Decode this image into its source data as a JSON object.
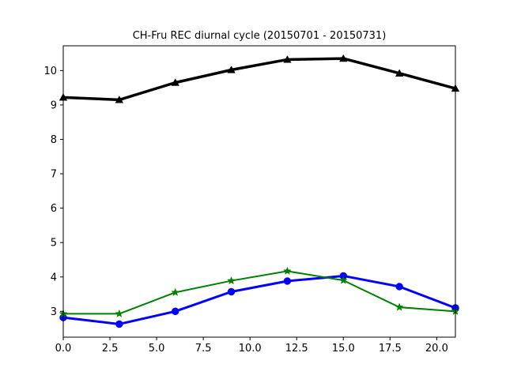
{
  "chart_data": {
    "type": "line",
    "title": "CH-Fru REC diurnal cycle (20150701 - 20150731)",
    "xlabel": "",
    "ylabel": "",
    "xlim": [
      0,
      21
    ],
    "ylim": [
      2.25,
      10.72
    ],
    "grid": false,
    "x_ticks": [
      "0.0",
      "2.5",
      "5.0",
      "7.5",
      "10.0",
      "12.5",
      "15.0",
      "17.5",
      "20.0"
    ],
    "y_ticks": [
      "3",
      "4",
      "5",
      "6",
      "7",
      "8",
      "9",
      "10"
    ],
    "x": [
      0,
      3,
      6,
      9,
      12,
      15,
      18,
      21
    ],
    "series": [
      {
        "values": [
          9.22,
          9.15,
          9.65,
          10.02,
          10.32,
          10.35,
          9.92,
          9.48
        ],
        "color": "#000000",
        "marker": "triangle",
        "line_weight": "thick"
      },
      {
        "values": [
          2.82,
          2.63,
          3.0,
          3.57,
          3.88,
          4.03,
          3.72,
          3.1
        ],
        "color": "#0000ff",
        "marker": "circle",
        "line_weight": "medium"
      },
      {
        "values": [
          2.93,
          2.93,
          3.55,
          3.89,
          4.17,
          3.9,
          3.12,
          3.0
        ],
        "color": "#008000",
        "marker": "star",
        "line_weight": "thin"
      }
    ]
  }
}
